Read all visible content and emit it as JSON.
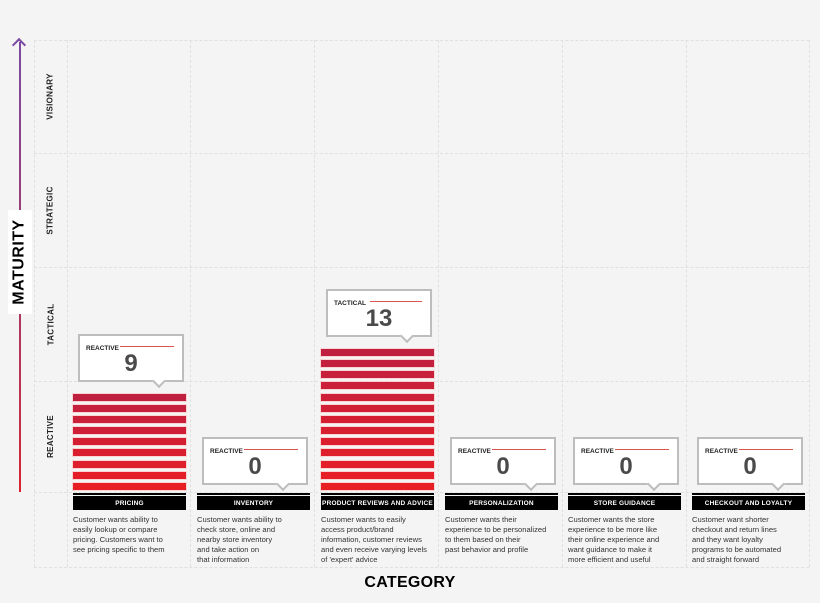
{
  "axes": {
    "y_title": "MATURITY",
    "x_title": "CATEGORY",
    "levels": [
      "VISIONARY",
      "STRATEGIC",
      "TACTICAL",
      "REACTIVE"
    ]
  },
  "colors": {
    "bar_top": "#c02040",
    "bar_bottom": "#e81e25",
    "header_bg": "#000000",
    "arrow_top": "#7b4aa0",
    "arrow_bottom": "#d92230",
    "callout_border": "#bdbdbd",
    "callout_rule": "#d9534f"
  },
  "categories": [
    {
      "name": "PRICING",
      "level": "REACTIVE",
      "value": "9",
      "description": [
        "Customer wants ability to",
        "easily lookup or compare",
        "pricing. Customers want to",
        "see pricing specific to them"
      ]
    },
    {
      "name": "INVENTORY",
      "level": "REACTIVE",
      "value": "0",
      "description": [
        "Customer wants ability to",
        "check store, online and",
        "nearby store inventory",
        "and take action on",
        "that information"
      ]
    },
    {
      "name": "PRODUCT REVIEWS AND ADVICE",
      "level": "TACTICAL",
      "value": "13",
      "description": [
        "Customer wants to easily",
        "access product/brand",
        "information, customer reviews",
        "and even receive varying levels",
        "of 'expert' advice"
      ]
    },
    {
      "name": "PERSONALIZATION",
      "level": "REACTIVE",
      "value": "0",
      "description": [
        "Customer wants their",
        "experience to be personalized",
        "to them based on their",
        "past behavior and profile"
      ]
    },
    {
      "name": "STORE GUIDANCE",
      "level": "REACTIVE",
      "value": "0",
      "description": [
        "Customer wants the store",
        "experience to be more like",
        "their online experience and",
        "want guidance to make it",
        "more efficient and useful"
      ]
    },
    {
      "name": "CHECKOUT AND LOYALTY",
      "level": "REACTIVE",
      "value": "0",
      "description": [
        "Customer want shorter",
        "checkout and return lines",
        "and they want loyalty",
        "programs to be automated",
        "and straight forward"
      ]
    }
  ],
  "chart_data": {
    "type": "bar",
    "title": "",
    "xlabel": "CATEGORY",
    "ylabel": "MATURITY",
    "categories": [
      "PRICING",
      "INVENTORY",
      "PRODUCT REVIEWS AND ADVICE",
      "PERSONALIZATION",
      "STORE GUIDANCE",
      "CHECKOUT AND LOYALTY"
    ],
    "values": [
      9,
      0,
      13,
      0,
      0,
      0
    ],
    "maturity_labels": [
      "REACTIVE",
      "REACTIVE",
      "TACTICAL",
      "REACTIVE",
      "REACTIVE",
      "REACTIVE"
    ],
    "y_levels": [
      "REACTIVE",
      "TACTICAL",
      "STRATEGIC",
      "VISIONARY"
    ],
    "grid": true,
    "legend": "none"
  }
}
